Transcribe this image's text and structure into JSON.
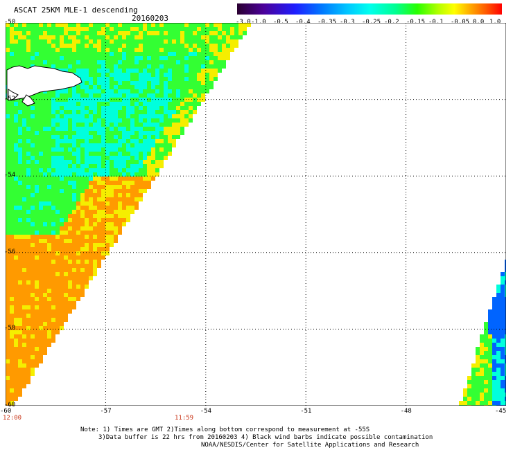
{
  "header": {
    "title": "ASCAT 25KM MLE-1 descending",
    "date": "20160203"
  },
  "colorbar": {
    "tick_labels": [
      "-3.0",
      "-1.0",
      "-0.5",
      "-0.4",
      "-0.35",
      "-0.3",
      "-0.25",
      "-0.2",
      "-0.15",
      "-0.1",
      "-0.05",
      "0.0",
      "1.0"
    ],
    "colors": [
      "#2a0030",
      "#4b0099",
      "#1e1eff",
      "#0078ff",
      "#00c8ff",
      "#00ffee",
      "#00ff90",
      "#28ff00",
      "#b4ff00",
      "#ffff00",
      "#ffaa00",
      "#ff5a00",
      "#ff0000"
    ]
  },
  "map": {
    "lat_labels": [
      "-50",
      "-52",
      "-54",
      "-56",
      "-58",
      "-60"
    ],
    "lon_labels": [
      "-60",
      "-57",
      "-54",
      "-51",
      "-48",
      "-45"
    ],
    "time_labels": [
      "12:00",
      "11:59"
    ],
    "colors": {
      "orange": "#ff9a00",
      "yellow": "#f5ee00",
      "green": "#33ff33",
      "cyan": "#00ffdd",
      "blue": "#0064ff"
    }
  },
  "footer": {
    "note_line1": "Note: 1) Times are GMT 2)Times along bottom correspond to measurement at -55S",
    "note_line2": "3)Data buffer is 22 hrs from 20160203 4) Black wind barbs indicate possible contamination",
    "note_line3": "NOAA/NESDIS/Center for Satellite Applications and Research"
  }
}
